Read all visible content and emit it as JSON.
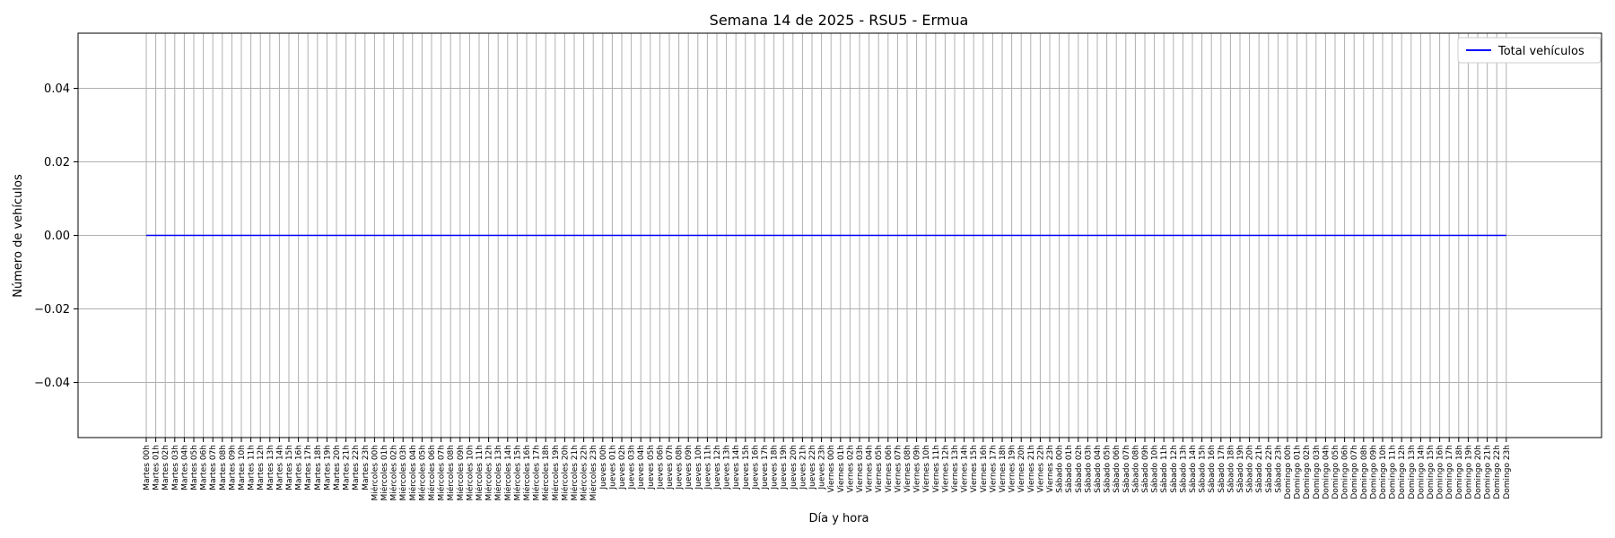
{
  "chart_data": {
    "type": "line",
    "title": "Semana 14 de 2025 - RSU5 - Ermua",
    "xlabel": "Día y hora",
    "ylabel": "Número de vehículos",
    "ylim": [
      -0.055,
      0.055
    ],
    "yticks": [
      -0.04,
      -0.02,
      0.0,
      0.02,
      0.04
    ],
    "ytick_labels": [
      "−0.04",
      "−0.02",
      "0.00",
      "0.02",
      "0.04"
    ],
    "grid": true,
    "legend_position": "top-right",
    "x": [
      "Martes 00h",
      "Martes 01h",
      "Martes 02h",
      "Martes 03h",
      "Martes 04h",
      "Martes 05h",
      "Martes 06h",
      "Martes 07h",
      "Martes 08h",
      "Martes 09h",
      "Martes 10h",
      "Martes 11h",
      "Martes 12h",
      "Martes 13h",
      "Martes 14h",
      "Martes 15h",
      "Martes 16h",
      "Martes 17h",
      "Martes 18h",
      "Martes 19h",
      "Martes 20h",
      "Martes 21h",
      "Martes 22h",
      "Martes 23h",
      "Miércoles 00h",
      "Miércoles 01h",
      "Miércoles 02h",
      "Miércoles 03h",
      "Miércoles 04h",
      "Miércoles 05h",
      "Miércoles 06h",
      "Miércoles 07h",
      "Miércoles 08h",
      "Miércoles 09h",
      "Miércoles 10h",
      "Miércoles 11h",
      "Miércoles 12h",
      "Miércoles 13h",
      "Miércoles 14h",
      "Miércoles 15h",
      "Miércoles 16h",
      "Miércoles 17h",
      "Miércoles 18h",
      "Miércoles 19h",
      "Miércoles 20h",
      "Miércoles 21h",
      "Miércoles 22h",
      "Miércoles 23h",
      "Jueves 00h",
      "Jueves 01h",
      "Jueves 02h",
      "Jueves 03h",
      "Jueves 04h",
      "Jueves 05h",
      "Jueves 06h",
      "Jueves 07h",
      "Jueves 08h",
      "Jueves 09h",
      "Jueves 10h",
      "Jueves 11h",
      "Jueves 12h",
      "Jueves 13h",
      "Jueves 14h",
      "Jueves 15h",
      "Jueves 16h",
      "Jueves 17h",
      "Jueves 18h",
      "Jueves 19h",
      "Jueves 20h",
      "Jueves 21h",
      "Jueves 22h",
      "Jueves 23h",
      "Viernes 00h",
      "Viernes 01h",
      "Viernes 02h",
      "Viernes 03h",
      "Viernes 04h",
      "Viernes 05h",
      "Viernes 06h",
      "Viernes 07h",
      "Viernes 08h",
      "Viernes 09h",
      "Viernes 10h",
      "Viernes 11h",
      "Viernes 12h",
      "Viernes 13h",
      "Viernes 14h",
      "Viernes 15h",
      "Viernes 16h",
      "Viernes 17h",
      "Viernes 18h",
      "Viernes 19h",
      "Viernes 20h",
      "Viernes 21h",
      "Viernes 22h",
      "Viernes 23h",
      "Sábado 00h",
      "Sábado 01h",
      "Sábado 02h",
      "Sábado 03h",
      "Sábado 04h",
      "Sábado 05h",
      "Sábado 06h",
      "Sábado 07h",
      "Sábado 08h",
      "Sábado 09h",
      "Sábado 10h",
      "Sábado 11h",
      "Sábado 12h",
      "Sábado 13h",
      "Sábado 14h",
      "Sábado 15h",
      "Sábado 16h",
      "Sábado 17h",
      "Sábado 18h",
      "Sábado 19h",
      "Sábado 20h",
      "Sábado 21h",
      "Sábado 22h",
      "Sábado 23h",
      "Domingo 00h",
      "Domingo 01h",
      "Domingo 02h",
      "Domingo 03h",
      "Domingo 04h",
      "Domingo 05h",
      "Domingo 06h",
      "Domingo 07h",
      "Domingo 08h",
      "Domingo 09h",
      "Domingo 10h",
      "Domingo 11h",
      "Domingo 12h",
      "Domingo 13h",
      "Domingo 14h",
      "Domingo 15h",
      "Domingo 16h",
      "Domingo 17h",
      "Domingo 18h",
      "Domingo 19h",
      "Domingo 20h",
      "Domingo 21h",
      "Domingo 22h",
      "Domingo 23h"
    ],
    "series": [
      {
        "name": "Total vehículos",
        "color": "#0000ff",
        "values": [
          0,
          0,
          0,
          0,
          0,
          0,
          0,
          0,
          0,
          0,
          0,
          0,
          0,
          0,
          0,
          0,
          0,
          0,
          0,
          0,
          0,
          0,
          0,
          0,
          0,
          0,
          0,
          0,
          0,
          0,
          0,
          0,
          0,
          0,
          0,
          0,
          0,
          0,
          0,
          0,
          0,
          0,
          0,
          0,
          0,
          0,
          0,
          0,
          0,
          0,
          0,
          0,
          0,
          0,
          0,
          0,
          0,
          0,
          0,
          0,
          0,
          0,
          0,
          0,
          0,
          0,
          0,
          0,
          0,
          0,
          0,
          0,
          0,
          0,
          0,
          0,
          0,
          0,
          0,
          0,
          0,
          0,
          0,
          0,
          0,
          0,
          0,
          0,
          0,
          0,
          0,
          0,
          0,
          0,
          0,
          0,
          0,
          0,
          0,
          0,
          0,
          0,
          0,
          0,
          0,
          0,
          0,
          0,
          0,
          0,
          0,
          0,
          0,
          0,
          0,
          0,
          0,
          0,
          0,
          0,
          0,
          0,
          0,
          0,
          0,
          0,
          0,
          0,
          0,
          0,
          0,
          0,
          0,
          0,
          0,
          0,
          0,
          0,
          0,
          0,
          0,
          0,
          0,
          0
        ]
      }
    ]
  }
}
